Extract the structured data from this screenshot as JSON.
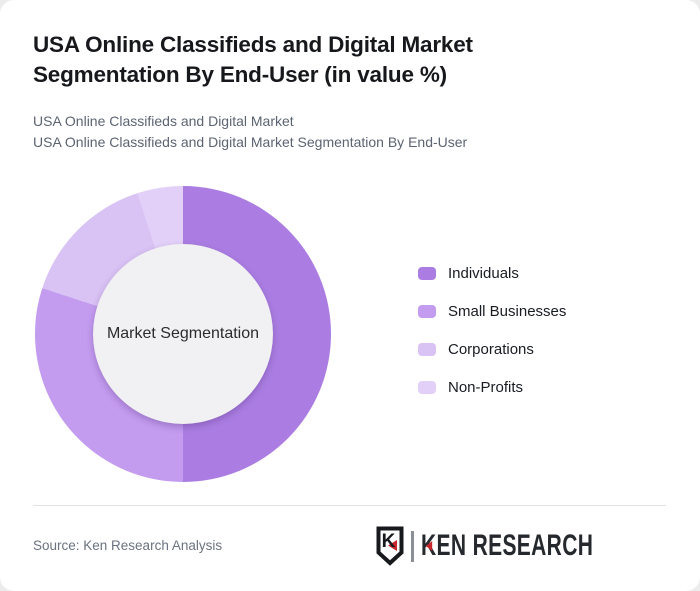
{
  "header": {
    "title": "USA Online Classifieds and Digital Market Segmentation By End-User (in value %)",
    "subtitle1": "USA Online Classifieds and Digital Market",
    "subtitle2": "USA Online Classifieds and Digital Market Segmentation By End-User"
  },
  "chart_data": {
    "type": "pie",
    "subtype": "donut",
    "title": "USA Online Classifieds and Digital Market Segmentation By End-User (in value %)",
    "center_label": "Market Segmentation",
    "categories": [
      "Individuals",
      "Small Businesses",
      "Corporations",
      "Non-Profits"
    ],
    "values": [
      50,
      30,
      15,
      5
    ],
    "unit": "%",
    "colors": [
      "#ab7de2",
      "#c39bef",
      "#d9c2f4",
      "#e3d0f8"
    ],
    "start_angle_deg": 0,
    "direction": "clockwise",
    "legend_position": "right",
    "inner_hole_color": "#f1f0f2",
    "data_labels_shown": false
  },
  "footer": {
    "source": "Source: Ken Research Analysis",
    "logo": {
      "shield_letter": "K",
      "brand": "KEN RESEARCH",
      "accent_color": "#c9252c"
    }
  }
}
